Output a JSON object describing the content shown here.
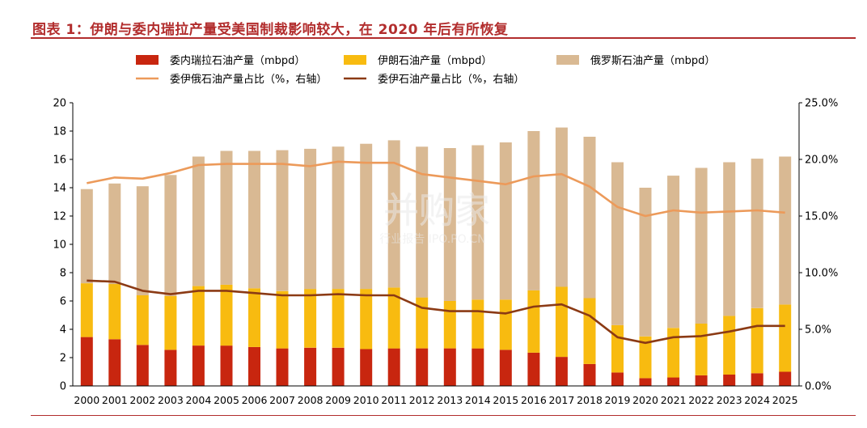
{
  "title": "图表 1：伊朗与委内瑞拉产量受美国制裁影响较大，在 2020 年后有所恢复",
  "watermark": {
    "main": "并购家",
    "sub": "行业报告 IPO.PO.CN"
  },
  "colors": {
    "venezuela": "#c8260f",
    "iran": "#f8bb10",
    "russia": "#d9b993",
    "share_total": "#ec9a5a",
    "share_vi": "#8b3a14",
    "title": "#b22d2d"
  },
  "chart_data": {
    "type": "bar",
    "stacked": true,
    "categories": [
      "2000",
      "2001",
      "2002",
      "2003",
      "2004",
      "2005",
      "2006",
      "2007",
      "2008",
      "2009",
      "2010",
      "2011",
      "2012",
      "2013",
      "2014",
      "2015",
      "2016",
      "2017",
      "2018",
      "2019",
      "2020",
      "2021",
      "2022",
      "2023",
      "2024",
      "2025"
    ],
    "series": [
      {
        "name": "委内瑞拉石油产量（mbpd）",
        "type": "bar",
        "axis": "left",
        "values": [
          3.45,
          3.3,
          2.9,
          2.55,
          2.85,
          2.85,
          2.75,
          2.65,
          2.7,
          2.7,
          2.6,
          2.65,
          2.65,
          2.65,
          2.65,
          2.55,
          2.35,
          2.05,
          1.55,
          0.95,
          0.55,
          0.6,
          0.75,
          0.8,
          0.9,
          1.0
        ]
      },
      {
        "name": "伊朗石油产量（mbpd）",
        "type": "bar",
        "axis": "left",
        "values": [
          3.8,
          3.9,
          3.5,
          3.8,
          4.2,
          4.3,
          4.15,
          4.05,
          4.15,
          4.15,
          4.25,
          4.3,
          3.6,
          3.35,
          3.45,
          3.55,
          4.4,
          4.95,
          4.65,
          3.35,
          2.95,
          3.5,
          3.65,
          4.15,
          4.6,
          4.75
        ]
      },
      {
        "name": "俄罗斯石油产量（mbpd）",
        "type": "bar",
        "axis": "left",
        "values": [
          6.65,
          7.1,
          7.7,
          8.55,
          9.15,
          9.45,
          9.7,
          9.95,
          9.9,
          10.05,
          10.25,
          10.4,
          10.65,
          10.8,
          10.9,
          11.1,
          11.25,
          11.25,
          11.4,
          11.5,
          10.5,
          10.75,
          11.0,
          10.85,
          10.55,
          10.45
        ]
      },
      {
        "name": "委伊俄石油产量占比（%，右轴）",
        "type": "line",
        "axis": "right",
        "values": [
          17.9,
          18.4,
          18.3,
          18.8,
          19.5,
          19.6,
          19.6,
          19.6,
          19.4,
          19.8,
          19.7,
          19.7,
          18.7,
          18.4,
          18.1,
          17.8,
          18.5,
          18.7,
          17.6,
          15.8,
          15.0,
          15.5,
          15.3,
          15.4,
          15.5,
          15.3
        ]
      },
      {
        "name": "委伊石油产量占比（%，右轴）",
        "type": "line",
        "axis": "right",
        "values": [
          9.3,
          9.2,
          8.4,
          8.1,
          8.4,
          8.4,
          8.2,
          8.0,
          8.0,
          8.1,
          8.0,
          8.0,
          6.9,
          6.6,
          6.6,
          6.4,
          7.0,
          7.2,
          6.2,
          4.3,
          3.8,
          4.3,
          4.4,
          4.8,
          5.3,
          5.3
        ]
      }
    ],
    "y_left": {
      "min": 0,
      "max": 20,
      "step": 2,
      "ticks": [
        "0",
        "2",
        "4",
        "6",
        "8",
        "10",
        "12",
        "14",
        "16",
        "18",
        "20"
      ]
    },
    "y_right": {
      "min": 0,
      "max": 25,
      "step": 5,
      "ticks": [
        "0.0%",
        "5.0%",
        "10.0%",
        "15.0%",
        "20.0%",
        "25.0%"
      ]
    },
    "grid": false,
    "legend_position": "top"
  }
}
